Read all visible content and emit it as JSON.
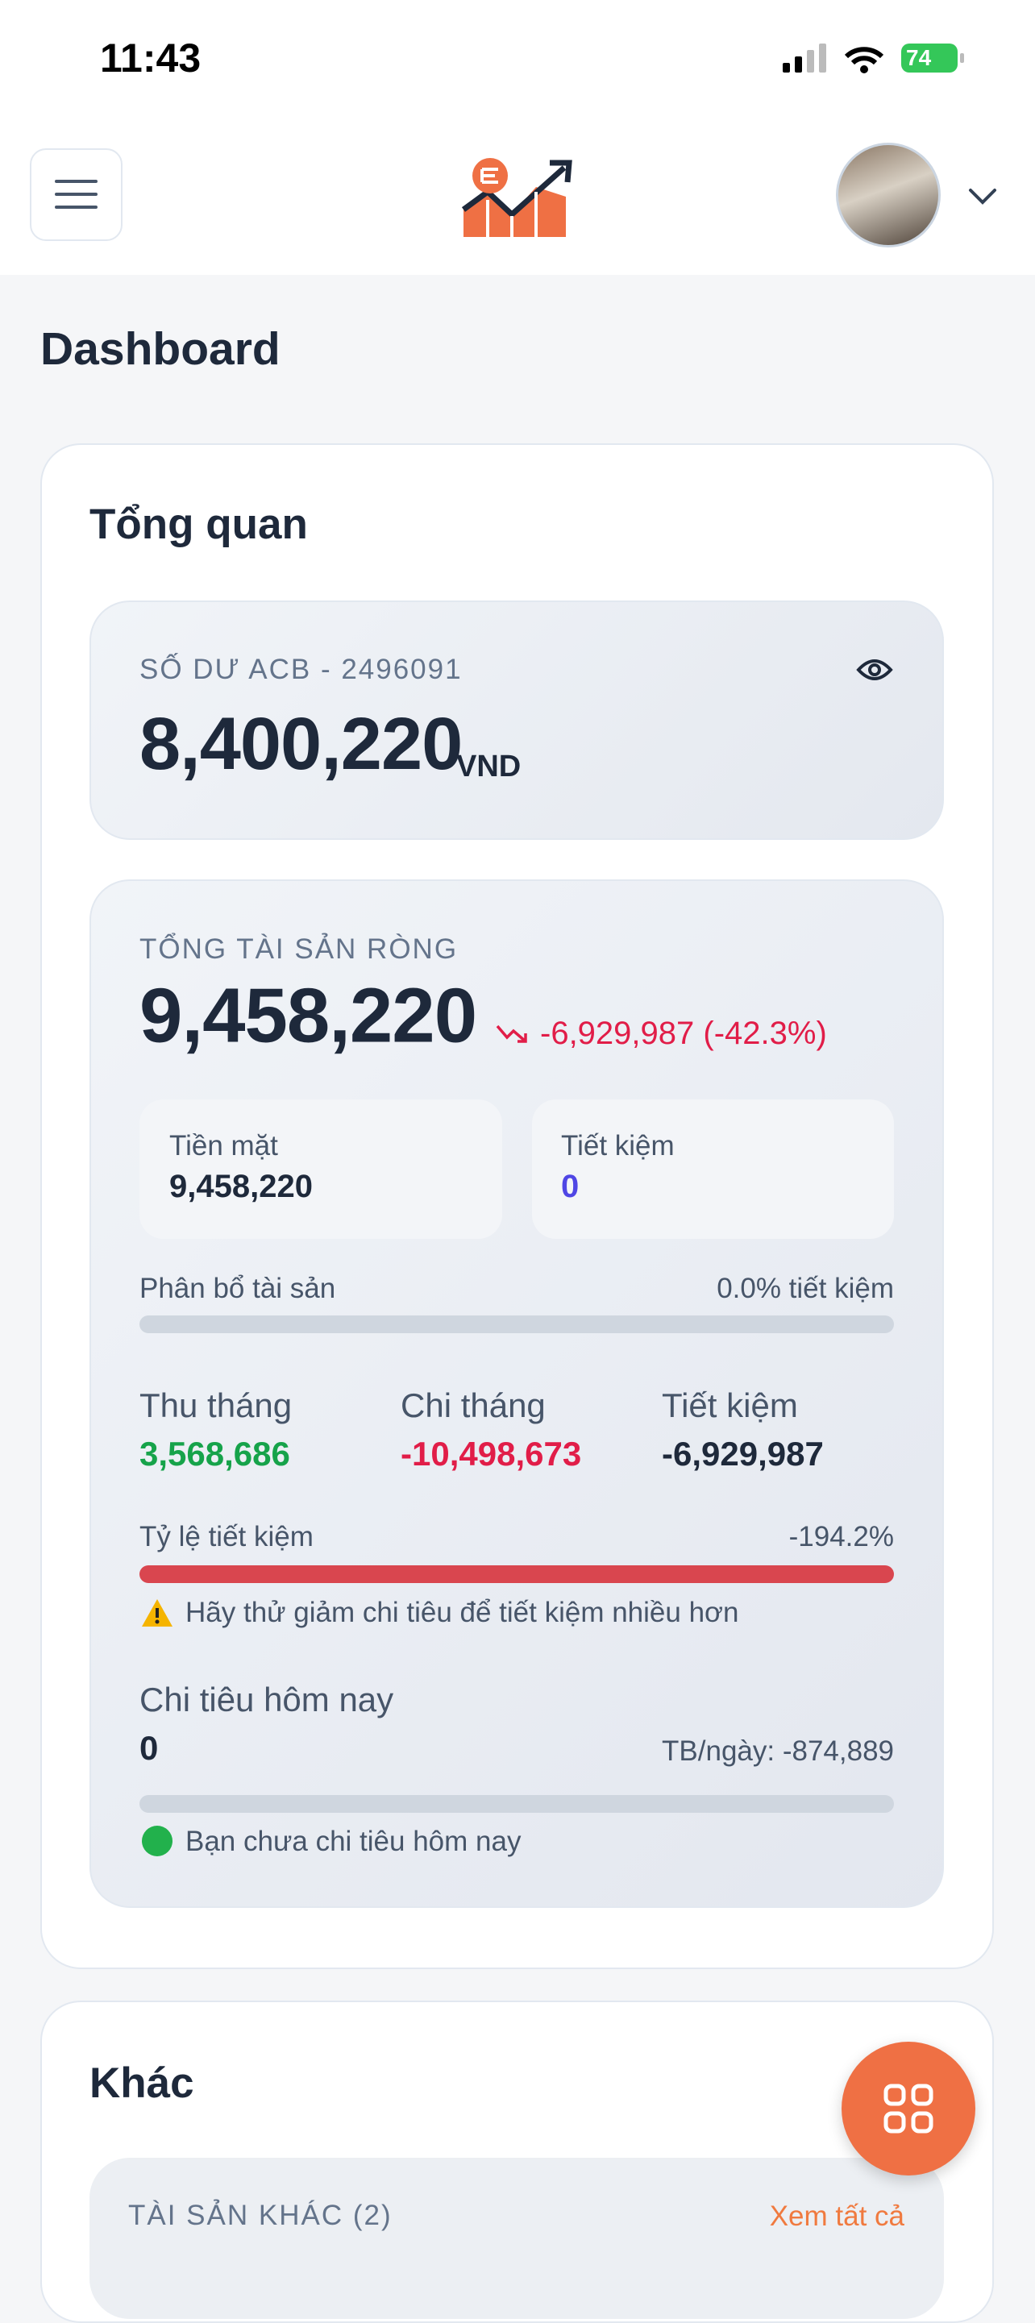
{
  "status_bar": {
    "time": "11:43",
    "battery": "74"
  },
  "page": {
    "title": "Dashboard"
  },
  "overview": {
    "title": "Tổng quan",
    "balance": {
      "label": "SỐ DƯ ACB - 2496091",
      "amount": "8,400,220",
      "currency": "VND"
    },
    "net_worth": {
      "label": "TỔNG TÀI SẢN RÒNG",
      "amount": "9,458,220",
      "change": "-6,929,987 (-42.3%)"
    },
    "cash": {
      "label": "Tiền mặt",
      "value": "9,458,220"
    },
    "savings": {
      "label": "Tiết kiệm",
      "value": "0"
    },
    "allocation": {
      "label": "Phân bổ tài sản",
      "value": "0.0% tiết kiệm"
    },
    "monthly": [
      {
        "label": "Thu tháng",
        "value": "3,568,686"
      },
      {
        "label": "Chi tháng",
        "value": "-10,498,673"
      },
      {
        "label": "Tiết kiệm",
        "value": "-6,929,987"
      }
    ],
    "savings_rate": {
      "label": "Tỷ lệ tiết kiệm",
      "value": "-194.2%",
      "warning": "Hãy thử giảm chi tiêu để tiết kiệm nhiều hơn"
    },
    "today": {
      "label": "Chi tiêu hôm nay",
      "value": "0",
      "average": "TB/ngày: -874,889",
      "status": "Bạn chưa chi tiêu hôm nay"
    }
  },
  "other": {
    "title": "Khác",
    "assets_label": "TÀI SẢN KHÁC (2)",
    "see_all": "Xem tất cả"
  }
}
